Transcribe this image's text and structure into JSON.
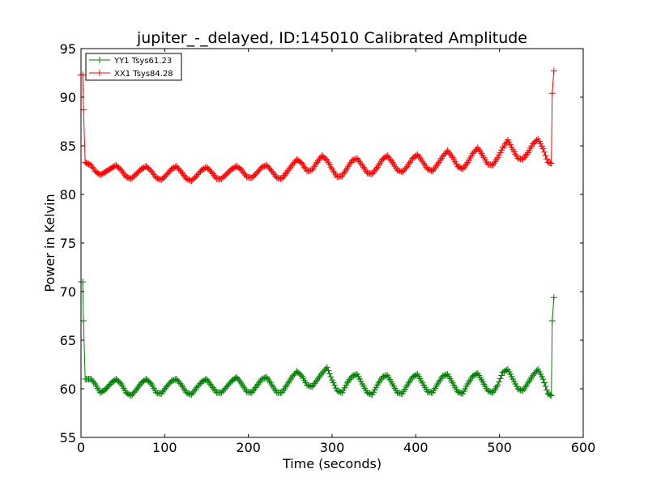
{
  "chart_data": {
    "type": "line",
    "title": "jupiter_-_delayed, ID:145010 Calibrated Amplitude",
    "xlabel": "Time (seconds)",
    "ylabel": "Power in Kelvin",
    "xlim": [
      0,
      600
    ],
    "ylim": [
      55,
      95
    ],
    "xticks": [
      0,
      100,
      200,
      300,
      400,
      500,
      600
    ],
    "yticks": [
      55,
      60,
      65,
      70,
      75,
      80,
      85,
      90,
      95
    ],
    "grid": false,
    "legend_position": "top-left",
    "marker": "+",
    "series": [
      {
        "name": "YY1 Tsys61.23",
        "color": "#008000",
        "x": [
          0,
          2,
          3,
          5,
          12,
          17,
          23,
          29,
          36,
          42,
          48,
          54,
          60,
          66,
          72,
          78,
          84,
          90,
          96,
          102,
          108,
          114,
          120,
          126,
          132,
          138,
          144,
          150,
          156,
          162,
          168,
          174,
          180,
          186,
          192,
          198,
          204,
          210,
          216,
          222,
          228,
          234,
          240,
          246,
          252,
          258,
          264,
          270,
          276,
          282,
          288,
          294,
          300,
          306,
          312,
          318,
          324,
          330,
          336,
          342,
          348,
          354,
          360,
          366,
          372,
          378,
          384,
          390,
          396,
          402,
          408,
          414,
          420,
          426,
          432,
          438,
          444,
          450,
          456,
          462,
          468,
          474,
          480,
          486,
          492,
          498,
          504,
          510,
          516,
          522,
          528,
          534,
          540,
          546,
          552,
          558,
          562,
          563,
          565
        ],
        "values": [
          71.0,
          71.0,
          67.0,
          61.0,
          61.0,
          60.5,
          59.6,
          59.9,
          60.6,
          61.0,
          60.5,
          59.6,
          59.3,
          59.9,
          60.6,
          61.0,
          60.5,
          59.6,
          59.5,
          60.2,
          60.8,
          61.0,
          60.4,
          59.6,
          59.4,
          60.1,
          60.7,
          61.0,
          60.3,
          59.6,
          59.6,
          60.2,
          60.8,
          61.2,
          60.5,
          59.7,
          59.6,
          60.3,
          61.0,
          61.2,
          60.4,
          59.6,
          59.6,
          60.4,
          61.2,
          61.8,
          61.3,
          60.4,
          60.2,
          60.9,
          61.6,
          62.2,
          60.9,
          59.8,
          59.6,
          60.6,
          61.3,
          61.5,
          60.5,
          59.6,
          59.4,
          60.4,
          61.2,
          61.4,
          60.5,
          59.6,
          59.5,
          60.4,
          61.2,
          61.5,
          60.6,
          59.7,
          59.6,
          60.5,
          61.3,
          61.5,
          60.6,
          59.7,
          59.5,
          60.5,
          61.3,
          61.6,
          60.7,
          59.8,
          59.6,
          60.4,
          61.7,
          62.0,
          61.0,
          60.0,
          59.8,
          60.6,
          61.4,
          62.0,
          61.0,
          59.5,
          59.3,
          67.0,
          69.4
        ]
      },
      {
        "name": "XX1 Tsys84.28",
        "color": "#ff0000",
        "x": [
          0,
          2,
          3,
          5,
          12,
          17,
          23,
          29,
          36,
          42,
          48,
          54,
          60,
          66,
          72,
          78,
          84,
          90,
          96,
          102,
          108,
          114,
          120,
          126,
          132,
          138,
          144,
          150,
          156,
          162,
          168,
          174,
          180,
          186,
          192,
          198,
          204,
          210,
          216,
          222,
          228,
          234,
          240,
          246,
          252,
          258,
          264,
          270,
          276,
          282,
          288,
          294,
          300,
          306,
          312,
          318,
          324,
          330,
          336,
          342,
          348,
          354,
          360,
          366,
          372,
          378,
          384,
          390,
          396,
          402,
          408,
          414,
          420,
          426,
          432,
          438,
          444,
          450,
          456,
          462,
          468,
          474,
          480,
          486,
          492,
          498,
          504,
          510,
          516,
          522,
          528,
          534,
          540,
          546,
          552,
          558,
          562,
          563,
          565
        ],
        "values": [
          92.3,
          92.3,
          88.7,
          83.3,
          83.0,
          82.4,
          82.0,
          82.3,
          82.7,
          83.0,
          82.5,
          81.8,
          81.6,
          82.1,
          82.6,
          82.9,
          82.4,
          81.7,
          81.5,
          82.0,
          82.6,
          82.9,
          82.3,
          81.6,
          81.4,
          81.9,
          82.5,
          82.8,
          82.3,
          81.6,
          81.6,
          82.1,
          82.6,
          82.9,
          82.5,
          81.8,
          81.7,
          82.2,
          82.8,
          83.0,
          82.4,
          81.7,
          81.6,
          82.3,
          83.0,
          83.6,
          83.2,
          82.4,
          82.5,
          83.3,
          84.0,
          83.5,
          82.6,
          81.8,
          81.9,
          82.7,
          83.5,
          83.7,
          83.0,
          82.2,
          82.1,
          82.8,
          83.6,
          84.0,
          83.3,
          82.5,
          82.3,
          82.9,
          83.7,
          84.1,
          83.4,
          82.6,
          82.4,
          83.1,
          83.9,
          84.5,
          83.8,
          82.9,
          82.6,
          83.3,
          84.2,
          84.8,
          84.0,
          83.1,
          83.0,
          83.8,
          84.8,
          85.6,
          84.6,
          83.7,
          83.6,
          84.3,
          85.2,
          85.7,
          84.7,
          83.3,
          83.2,
          90.4,
          92.7
        ]
      }
    ]
  }
}
